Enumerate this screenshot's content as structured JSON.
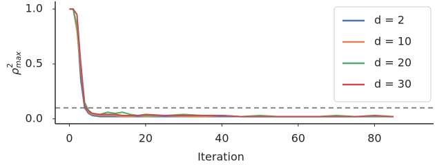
{
  "chart_data": {
    "type": "line",
    "xlabel": "Iteration",
    "ylabel": {
      "base": "ρ",
      "sup": "2",
      "sub": "max"
    },
    "x": [
      0,
      1,
      2,
      3,
      4,
      5,
      6,
      8,
      10,
      12,
      14,
      16,
      18,
      20,
      25,
      30,
      35,
      40,
      45,
      50,
      55,
      60,
      65,
      70,
      75,
      80,
      85
    ],
    "series": [
      {
        "name": "d = 2",
        "color": "#4c72b0",
        "values": [
          1,
          1,
          0.85,
          0.35,
          0.1,
          0.05,
          0.03,
          0.02,
          0.02,
          0.02,
          0.02,
          0.02,
          0.02,
          0.02,
          0.02,
          0.02,
          0.02,
          0.02,
          0.02,
          0.02,
          0.02,
          0.02,
          0.02,
          0.02,
          0.02,
          0.02,
          0.02
        ]
      },
      {
        "name": "d = 10",
        "color": "#dd8452",
        "values": [
          1,
          1,
          0.8,
          0.45,
          0.12,
          0.06,
          0.04,
          0.03,
          0.03,
          0.03,
          0.02,
          0.02,
          0.03,
          0.02,
          0.03,
          0.02,
          0.02,
          0.03,
          0.02,
          0.02,
          0.02,
          0.02,
          0.02,
          0.02,
          0.02,
          0.02,
          0.02
        ]
      },
      {
        "name": "d = 20",
        "color": "#55a868",
        "values": [
          1,
          1,
          0.85,
          0.5,
          0.15,
          0.08,
          0.05,
          0.04,
          0.06,
          0.05,
          0.06,
          0.04,
          0.03,
          0.03,
          0.03,
          0.04,
          0.03,
          0.03,
          0.02,
          0.03,
          0.02,
          0.02,
          0.02,
          0.03,
          0.02,
          0.02,
          0.02
        ]
      },
      {
        "name": "d = 30",
        "color": "#c44e52",
        "values": [
          1,
          1,
          0.95,
          0.5,
          0.12,
          0.07,
          0.05,
          0.04,
          0.04,
          0.04,
          0.03,
          0.03,
          0.03,
          0.04,
          0.03,
          0.03,
          0.03,
          0.03,
          0.02,
          0.02,
          0.02,
          0.02,
          0.02,
          0.02,
          0.02,
          0.03,
          0.02
        ]
      }
    ],
    "reference_line": {
      "value": 0.1,
      "color": "#888888"
    },
    "xlim": [
      -3.7,
      95.5
    ],
    "ylim": [
      -0.045,
      1.07
    ],
    "xticks": [
      0,
      20,
      40,
      60,
      80
    ],
    "yticks": [
      {
        "value": 0,
        "label": "0.0"
      },
      {
        "value": 0.5,
        "label": "0.5"
      },
      {
        "value": 1,
        "label": "1.0"
      }
    ],
    "legend": "upper right"
  }
}
